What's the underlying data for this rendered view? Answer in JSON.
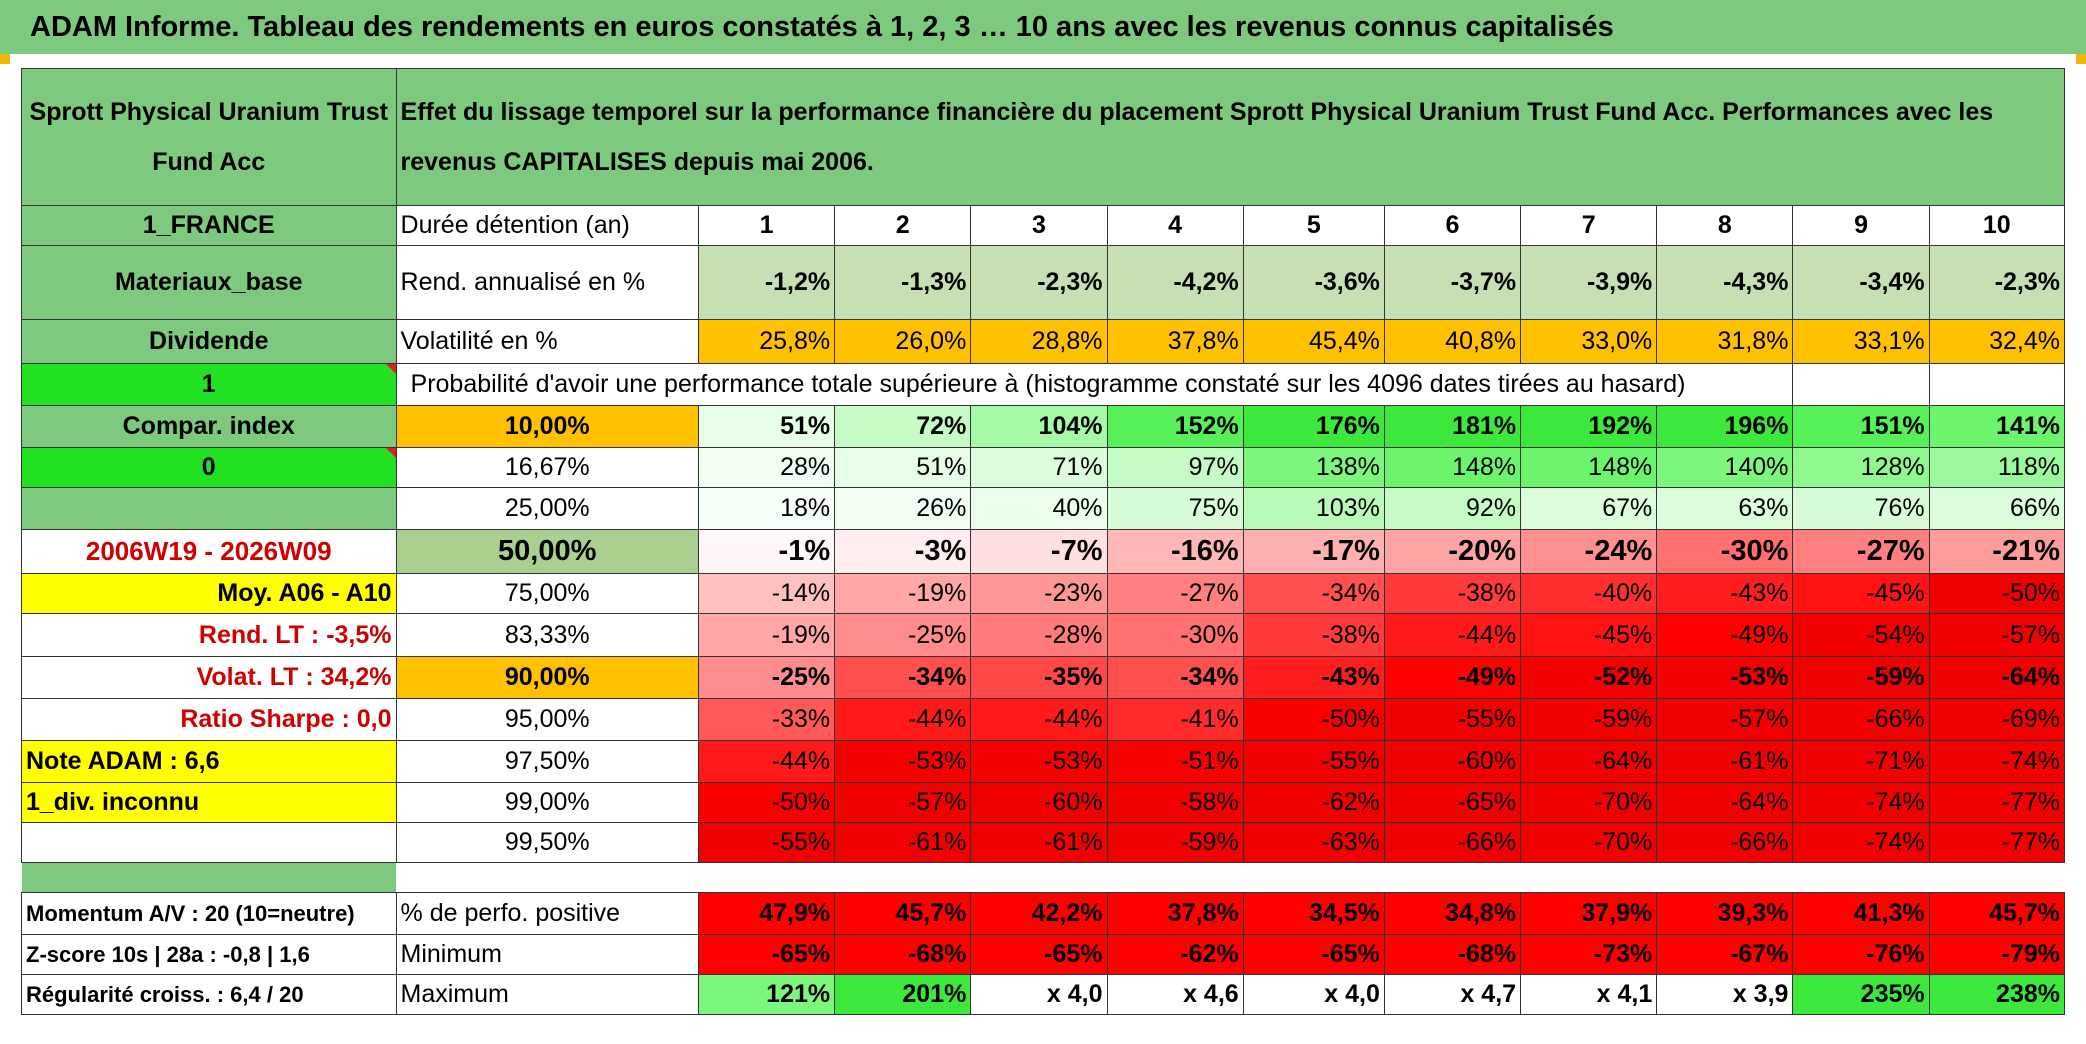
{
  "title": "ADAM Informe. Tableau des rendements en euros constatés à 1, 2, 3 … 10 ans avec les revenus connus capitalisés",
  "fund_name": "Sprott Physical Uranium Trust Fund Acc",
  "description": "Effet du lissage temporel sur la performance financière du placement Sprott Physical Uranium Trust Fund Acc. Performances avec les revenus CAPITALISES depuis mai 2006.",
  "left": {
    "country": "1_FRANCE",
    "sector": "Materiaux_base",
    "dividend_label": "Dividende",
    "dividend_value": "1",
    "compar_label": "Compar. index",
    "compar_value": "0",
    "period": "2006W19 - 2026W09",
    "moy": "Moy. A06 - A10",
    "rend_lt": "Rend. LT :   -3,5%",
    "volat_lt": "Volat. LT :   34,2%",
    "sharpe": "Ratio Sharpe :    0,0",
    "note": "Note ADAM : 6,6",
    "div": "1_div. inconnu",
    "momentum": "Momentum A/V : 20 (10=neutre)",
    "zscore": "Z-score 10s | 28a : -0,8 | 1,6",
    "regularite": "Régularité croiss. : 6,4 / 20"
  },
  "labels": {
    "duree": "Durée détention (an)",
    "rend": "Rend. annualisé en %",
    "vol": "Volatilité en %",
    "proba": "Probabilité d'avoir une performance totale supérieure à (histogramme constaté sur les 4096 dates tirées au hasard)",
    "pos": "% de perfo. positive",
    "min": "Minimum",
    "max": "Maximum"
  },
  "years": [
    "1",
    "2",
    "3",
    "4",
    "5",
    "6",
    "7",
    "8",
    "9",
    "10"
  ],
  "rend": [
    "-1,2%",
    "-1,3%",
    "-2,3%",
    "-4,2%",
    "-3,6%",
    "-3,7%",
    "-3,9%",
    "-4,3%",
    "-3,4%",
    "-2,3%"
  ],
  "vol": [
    "25,8%",
    "26,0%",
    "28,8%",
    "37,8%",
    "45,4%",
    "40,8%",
    "33,0%",
    "31,8%",
    "33,1%",
    "32,4%"
  ],
  "quantiles": [
    {
      "pct": "10,00%",
      "values": [
        "51%",
        "72%",
        "104%",
        "152%",
        "176%",
        "181%",
        "192%",
        "196%",
        "151%",
        "141%"
      ],
      "colors": [
        "#e8fde8",
        "#c5fcc5",
        "#a6f9a6",
        "#58f058",
        "#3ce83c",
        "#3ce83c",
        "#3ce83c",
        "#3ce83c",
        "#58f058",
        "#6cf46c"
      ]
    },
    {
      "pct": "16,67%",
      "values": [
        "28%",
        "51%",
        "71%",
        "97%",
        "138%",
        "148%",
        "148%",
        "140%",
        "128%",
        "118%"
      ],
      "colors": [
        "#f1fef1",
        "#e8fde8",
        "#dcfddc",
        "#c5fcc5",
        "#7df67d",
        "#6cf46c",
        "#6cf46c",
        "#7df67d",
        "#8ef78e",
        "#9cf89c"
      ]
    },
    {
      "pct": "25,00%",
      "values": [
        "18%",
        "26%",
        "40%",
        "75%",
        "103%",
        "92%",
        "67%",
        "63%",
        "76%",
        "66%"
      ],
      "colors": [
        "#f6fff6",
        "#f1fef1",
        "#ebfdeb",
        "#d8fcd8",
        "#b9fab9",
        "#c5fbc5",
        "#dcfddc",
        "#dcfddc",
        "#d8fcd8",
        "#dcfddc"
      ]
    },
    {
      "pct": "50,00%",
      "values": [
        "-1%",
        "-3%",
        "-7%",
        "-16%",
        "-17%",
        "-20%",
        "-24%",
        "-30%",
        "-27%",
        "-21%"
      ],
      "colors": [
        "#fff7f7",
        "#ffeeee",
        "#ffe0e0",
        "#ffb6b6",
        "#ffb0b0",
        "#ffa4a4",
        "#ff9090",
        "#ff7070",
        "#ff8080",
        "#ff9c9c"
      ]
    },
    {
      "pct": "75,00%",
      "values": [
        "-14%",
        "-19%",
        "-23%",
        "-27%",
        "-34%",
        "-38%",
        "-40%",
        "-43%",
        "-45%",
        "-50%"
      ],
      "colors": [
        "#ffc0c0",
        "#ffa6a6",
        "#ff9696",
        "#ff8080",
        "#ff5050",
        "#ff3a3a",
        "#ff2e2e",
        "#ff1e1e",
        "#ff1212",
        "#f00000"
      ]
    },
    {
      "pct": "83,33%",
      "values": [
        "-19%",
        "-25%",
        "-28%",
        "-30%",
        "-38%",
        "-44%",
        "-45%",
        "-49%",
        "-54%",
        "-57%"
      ],
      "colors": [
        "#ffa6a6",
        "#ff8c8c",
        "#ff7a7a",
        "#ff7070",
        "#ff3a3a",
        "#ff1a1a",
        "#ff1212",
        "#ff0000",
        "#f00000",
        "#f00000"
      ]
    },
    {
      "pct": "90,00%",
      "values": [
        "-25%",
        "-34%",
        "-35%",
        "-34%",
        "-43%",
        "-49%",
        "-52%",
        "-53%",
        "-59%",
        "-64%"
      ],
      "colors": [
        "#ff8c8c",
        "#ff5050",
        "#ff4848",
        "#ff5050",
        "#ff1e1e",
        "#ff0000",
        "#f40000",
        "#f40000",
        "#f00000",
        "#f00000"
      ]
    },
    {
      "pct": "95,00%",
      "values": [
        "-33%",
        "-44%",
        "-44%",
        "-41%",
        "-50%",
        "-55%",
        "-59%",
        "-57%",
        "-66%",
        "-69%"
      ],
      "colors": [
        "#ff5858",
        "#ff1a1a",
        "#ff1a1a",
        "#ff2a2a",
        "#f80000",
        "#f00000",
        "#f00000",
        "#f00000",
        "#f00000",
        "#f00000"
      ]
    },
    {
      "pct": "97,50%",
      "values": [
        "-44%",
        "-53%",
        "-53%",
        "-51%",
        "-55%",
        "-60%",
        "-64%",
        "-61%",
        "-71%",
        "-74%"
      ],
      "colors": [
        "#ff1a1a",
        "#f40000",
        "#f40000",
        "#f80000",
        "#f00000",
        "#f00000",
        "#f00000",
        "#f00000",
        "#f00000",
        "#f00000"
      ]
    },
    {
      "pct": "99,00%",
      "values": [
        "-50%",
        "-57%",
        "-60%",
        "-58%",
        "-62%",
        "-65%",
        "-70%",
        "-64%",
        "-74%",
        "-77%"
      ],
      "colors": [
        "#f80000",
        "#f00000",
        "#f00000",
        "#f00000",
        "#f00000",
        "#f00000",
        "#f00000",
        "#f00000",
        "#f00000",
        "#f00000"
      ]
    },
    {
      "pct": "99,50%",
      "values": [
        "-55%",
        "-61%",
        "-61%",
        "-59%",
        "-63%",
        "-66%",
        "-70%",
        "-66%",
        "-74%",
        "-77%"
      ],
      "colors": [
        "#f00000",
        "#f00000",
        "#f00000",
        "#f00000",
        "#f00000",
        "#f00000",
        "#f00000",
        "#f00000",
        "#f00000",
        "#f00000"
      ]
    }
  ],
  "pos": [
    "47,9%",
    "45,7%",
    "42,2%",
    "37,8%",
    "34,5%",
    "34,8%",
    "37,9%",
    "39,3%",
    "41,3%",
    "45,7%"
  ],
  "min": [
    "-65%",
    "-68%",
    "-65%",
    "-62%",
    "-65%",
    "-68%",
    "-73%",
    "-67%",
    "-76%",
    "-79%"
  ],
  "max": [
    "121%",
    "201%",
    "x 4,0",
    "x 4,6",
    "x 4,0",
    "x 4,7",
    "x 4,1",
    "x 3,9",
    "235%",
    "238%"
  ],
  "max_colors": [
    "#7df67d",
    "#3ce83c",
    "#ffffff",
    "#ffffff",
    "#ffffff",
    "#ffffff",
    "#ffffff",
    "#ffffff",
    "#3ce83c",
    "#3ce83c"
  ],
  "colors": {
    "header_green": "#7dc97d",
    "bright_green": "#22e022",
    "orange": "#ffc000",
    "rend_green": "#c6e0b4",
    "median_pct_green": "#a9d08e",
    "red": "#ff0000",
    "yellow": "#ffff00",
    "label_red": "#d00000"
  }
}
